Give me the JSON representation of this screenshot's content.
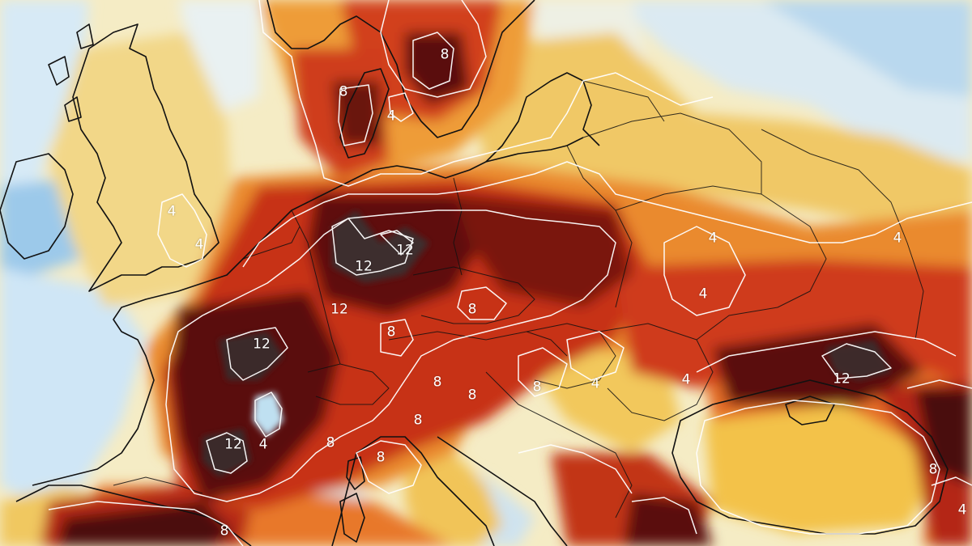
{
  "map": {
    "colors": {
      "ocean_cold": "#cfe6f6",
      "cold_blue": "#8fc0e6",
      "pale": "#f6efcf",
      "yellow": "#f3d983",
      "orange": "#eea03e",
      "red": "#d6451f",
      "dark_red": "#8c1a0e",
      "maroon": "#4a0c0b",
      "dark_core": "#3a2b2b",
      "coast": "#111111",
      "contour": "#ffffff"
    },
    "contour_labels": [
      {
        "id": "label-8-sweden",
        "text": "8"
      },
      {
        "id": "label-8-denmark",
        "text": "8"
      },
      {
        "id": "label-4-denmark",
        "text": "4"
      },
      {
        "id": "label-4-england",
        "text": "4"
      },
      {
        "id": "label-4-england-south",
        "text": "4"
      },
      {
        "id": "label-12-germany-east",
        "text": "12"
      },
      {
        "id": "label-12-germany-west",
        "text": "12"
      },
      {
        "id": "label-12-france-east",
        "text": "12"
      },
      {
        "id": "label-8-germany-south",
        "text": "8"
      },
      {
        "id": "label-8-czechia",
        "text": "8"
      },
      {
        "id": "label-12-france-central",
        "text": "12"
      },
      {
        "id": "label-8-austria",
        "text": "8"
      },
      {
        "id": "label-8-switzerland",
        "text": "8"
      },
      {
        "id": "label-8-slovenia",
        "text": "8"
      },
      {
        "id": "label-8-hungary",
        "text": "8"
      },
      {
        "id": "label-4-hungary",
        "text": "4"
      },
      {
        "id": "label-4-romania",
        "text": "4"
      },
      {
        "id": "label-12-france-south",
        "text": "12"
      },
      {
        "id": "label-4-rhone",
        "text": "4"
      },
      {
        "id": "label-8-alps",
        "text": "8"
      },
      {
        "id": "label-8-italy-north",
        "text": "8"
      },
      {
        "id": "label-8-pyrenees",
        "text": "8"
      },
      {
        "id": "label-4-ukraine",
        "text": "4"
      },
      {
        "id": "label-4-ukraine-south",
        "text": "4"
      },
      {
        "id": "label-4-russia",
        "text": "4"
      },
      {
        "id": "label-12-russia-south",
        "text": "12"
      },
      {
        "id": "label-8-caucasus",
        "text": "8"
      },
      {
        "id": "label-4-caucasus",
        "text": "4"
      }
    ]
  }
}
